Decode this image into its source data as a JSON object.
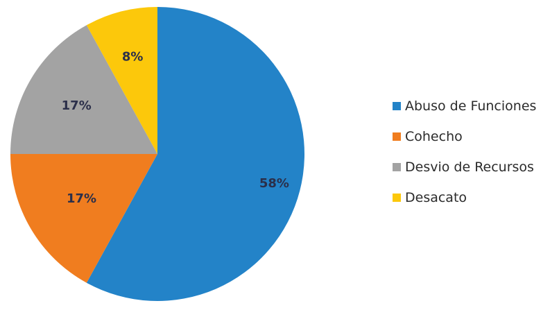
{
  "chart_data": {
    "type": "pie",
    "title": "",
    "slices": [
      {
        "label": "Abuso de Funciones",
        "value": 58,
        "display": "58%",
        "color": "#2383c8"
      },
      {
        "label": "Cohecho",
        "value": 17,
        "display": "17%",
        "color": "#f07d1f"
      },
      {
        "label": "Desvio de Recursos",
        "value": 17,
        "display": "17%",
        "color": "#a3a3a3"
      },
      {
        "label": "Desacato",
        "value": 8,
        "display": "8%",
        "color": "#fcc80b"
      }
    ],
    "legend_position": "right"
  }
}
